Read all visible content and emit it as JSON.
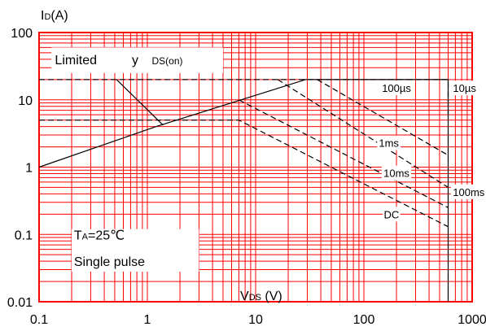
{
  "chart_data": {
    "type": "line",
    "x_scale": "log",
    "y_scale": "log",
    "xlim": [
      0.1,
      1000
    ],
    "ylim": [
      0.01,
      100
    ],
    "grid": true,
    "x_ticks": [
      "0.1",
      "1",
      "10",
      "100",
      "1000"
    ],
    "y_ticks": [
      "0.01",
      "0.1",
      "1",
      "10",
      "100"
    ],
    "ylabel": "ID(A)",
    "xlabel": "VDS (V)",
    "annotations": {
      "limited": "Limited",
      "limited_y": "y",
      "rds": "DS(on)",
      "conditions_ta": "TA=25℃",
      "conditions_pulse": "Single pulse"
    },
    "series": [
      {
        "name": "10µs",
        "style": "solid",
        "points": [
          [
            0.1,
            1
          ],
          [
            1.2,
            4
          ],
          [
            29,
            20
          ],
          [
            600,
            20
          ],
          [
            600,
            0.01
          ]
        ]
      },
      {
        "name": "100µs",
        "style": "dashed",
        "points": [
          [
            0.1,
            20
          ],
          [
            600,
            20
          ],
          [
            600,
            6
          ]
        ]
      },
      {
        "name": "1ms",
        "style": "dashed",
        "points": [
          [
            37,
            20
          ],
          [
            600,
            1.5
          ]
        ]
      },
      {
        "name": "10ms",
        "style": "dashed",
        "points": [
          [
            16,
            20
          ],
          [
            600,
            0.5
          ]
        ]
      },
      {
        "name": "100ms",
        "style": "dashed",
        "points": [
          [
            7,
            10
          ],
          [
            600,
            0.25
          ]
        ]
      },
      {
        "name": "DC",
        "style": "dashed",
        "points": [
          [
            0.1,
            5
          ],
          [
            7,
            5
          ],
          [
            600,
            0.13
          ]
        ]
      },
      {
        "name": "",
        "style": "solid",
        "points": [
          [
            0.52,
            20
          ],
          [
            1.4,
            4.2
          ]
        ]
      }
    ],
    "curve_labels": [
      {
        "text": "100µs",
        "x": 200,
        "y": 15
      },
      {
        "text": "10µs",
        "x": 850,
        "y": 15
      },
      {
        "text": "1ms",
        "x": 170,
        "y": 2.3
      },
      {
        "text": "10ms",
        "x": 200,
        "y": 0.82
      },
      {
        "text": "100ms",
        "x": 930,
        "y": 0.43
      },
      {
        "text": "DC",
        "x": 180,
        "y": 0.2
      }
    ],
    "colors": {
      "grid": "#ff0000",
      "curve": "#000000",
      "background": "#ffffff"
    }
  }
}
